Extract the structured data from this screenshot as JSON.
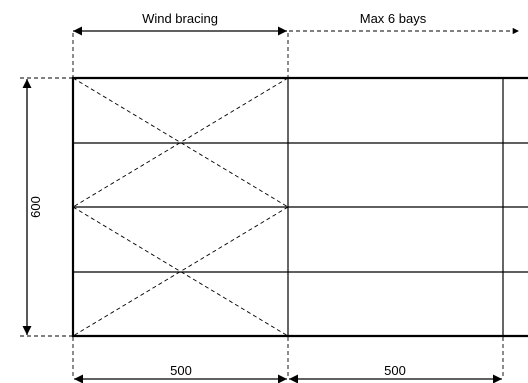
{
  "labels": {
    "wind_bracing": "Wind bracing",
    "max_bays": "Max 6 bays",
    "height": "600",
    "bay_width_1": "500",
    "bay_width_2": "500"
  }
}
